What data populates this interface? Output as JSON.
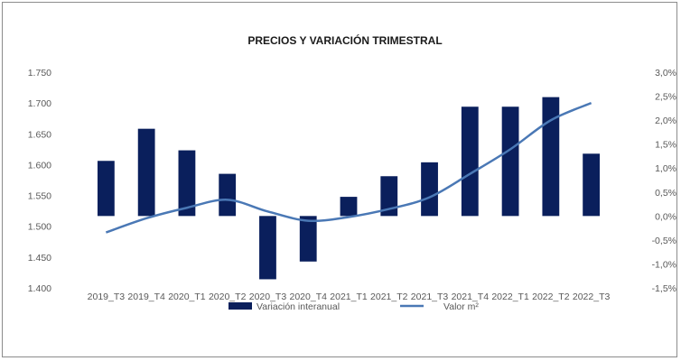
{
  "chart_data": {
    "type": "bar+line",
    "title": "PRECIOS Y VARIACIÓN TRIMESTRAL",
    "categories": [
      "2019_T3",
      "2019_T4",
      "2020_T1",
      "2020_T2",
      "2020_T3",
      "2020_T4",
      "2021_T1",
      "2021_T2",
      "2021_T3",
      "2021_T4",
      "2022_T1",
      "2022_T2",
      "2022_T3"
    ],
    "series": [
      {
        "name": "Variación interanual",
        "type": "bar",
        "axis": "right",
        "color": "#0a1f5c",
        "values": [
          1.15,
          1.82,
          1.37,
          0.88,
          -1.32,
          -0.95,
          0.4,
          0.83,
          1.12,
          2.28,
          2.28,
          2.48,
          1.3
        ]
      },
      {
        "name": "Valor m²",
        "type": "line",
        "axis": "left",
        "color": "#4a78b5",
        "values": [
          1490,
          1513,
          1530,
          1543,
          1524,
          1509,
          1515,
          1528,
          1547,
          1585,
          1625,
          1672,
          1700
        ]
      }
    ],
    "y_left": {
      "min": 1400,
      "max": 1750,
      "ticks": [
        "1.400",
        "1.450",
        "1.500",
        "1.550",
        "1.600",
        "1.650",
        "1.700",
        "1.750"
      ]
    },
    "y_right": {
      "min": -1.5,
      "max": 3.0,
      "ticks": [
        "-1,5%",
        "-1,0%",
        "-0,5%",
        "0,0%",
        "0,5%",
        "1,0%",
        "1,5%",
        "2,0%",
        "2,5%",
        "3,0%"
      ]
    },
    "grid": false,
    "legend": "bottom"
  }
}
